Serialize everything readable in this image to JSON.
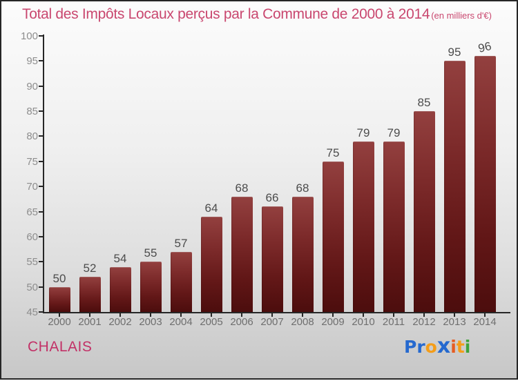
{
  "header": {
    "title": "Total des Impôts Locaux perçus par la Commune de 2000 à 2014",
    "subtitle": "(en milliers d'€)"
  },
  "chart_data": {
    "type": "bar",
    "title": "Total des Impôts Locaux perçus par la Commune de 2000 à 2014",
    "subtitle": "(en milliers d'€)",
    "categories": [
      "2000",
      "2001",
      "2002",
      "2003",
      "2004",
      "2005",
      "2006",
      "2007",
      "2008",
      "2009",
      "2010",
      "2011",
      "2012",
      "2013",
      "2014"
    ],
    "values": [
      50,
      52,
      54,
      55,
      57,
      64,
      68,
      66,
      68,
      75,
      79,
      79,
      85,
      95,
      96
    ],
    "xlabel": "",
    "ylabel": "",
    "ylim": [
      45,
      100
    ],
    "ytick_step": 5,
    "grid": false,
    "legend": null,
    "bar_color_top": "#93403f",
    "bar_color_bottom": "#4c0d0d",
    "axis_color": "#262626",
    "value_label_color": "#4c4c4c",
    "tick_label_color": "#8d8d8d",
    "category_label_color": "#6e6e6e",
    "last_value_label_rotation_deg": -14
  },
  "footer": {
    "commune": "CHALAIS",
    "logo_letters": [
      {
        "ch": "P",
        "color": "#2569cf",
        "big": false
      },
      {
        "ch": "r",
        "color": "#2569cf",
        "big": false
      },
      {
        "ch": "o",
        "color": "#f49d19",
        "big": false
      },
      {
        "ch": "x",
        "color": "#2569cf",
        "big": true
      },
      {
        "ch": "i",
        "color": "#e65c22",
        "big": false
      },
      {
        "ch": "t",
        "color": "#f49d19",
        "big": false
      },
      {
        "ch": "i",
        "color": "#3fa33b",
        "big": false
      }
    ]
  },
  "colors": {
    "title": "#c9476f",
    "commune": "#c23066",
    "background_top": "#fcfcfc",
    "background_bottom": "#c7c7c7"
  }
}
